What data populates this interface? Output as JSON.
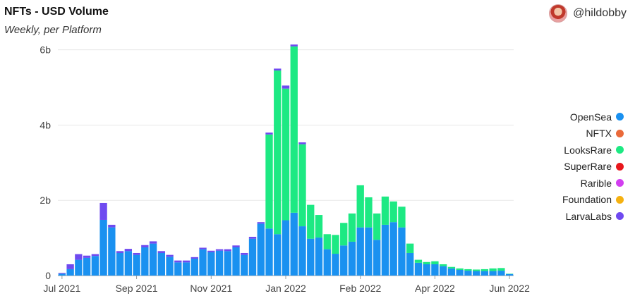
{
  "header": {
    "title": "NFTs - USD Volume",
    "subtitle": "Weekly, per Platform",
    "author": "@hildobby"
  },
  "icons": {
    "avatar": "user-avatar-icon"
  },
  "colors": {
    "OpenSea": "#1a91f0",
    "NFTX": "#ea6a3a",
    "LooksRare": "#1de983",
    "SuperRare": "#e8171c",
    "Rarible": "#d23ef0",
    "Foundation": "#f5b110",
    "LarvaLabs": "#6f4af0",
    "grid": "#e8e8e8",
    "axis": "#999999"
  },
  "chart_data": {
    "type": "bar",
    "stacked": true,
    "title": "NFTs - USD Volume",
    "subtitle": "Weekly, per Platform",
    "ylim": [
      0,
      6200000000
    ],
    "yticks": [
      {
        "value": 0,
        "label": "0"
      },
      {
        "value": 2000000000,
        "label": "2b"
      },
      {
        "value": 4000000000,
        "label": "4b"
      },
      {
        "value": 6000000000,
        "label": "6b"
      }
    ],
    "xticks": [
      {
        "index": 0,
        "label": "Jul 2021"
      },
      {
        "index": 9,
        "label": "Sep 2021"
      },
      {
        "index": 18,
        "label": "Nov 2021"
      },
      {
        "index": 27,
        "label": "Jan 2022"
      },
      {
        "index": 36,
        "label": "Feb 2022"
      },
      {
        "index": 45,
        "label": "Apr 2022"
      },
      {
        "index": 54,
        "label": "Jun 2022"
      }
    ],
    "legend_position": "right",
    "series": [
      {
        "name": "OpenSea",
        "values": [
          0.05,
          0.17,
          0.42,
          0.47,
          0.52,
          1.48,
          1.28,
          0.6,
          0.65,
          0.55,
          0.75,
          0.85,
          0.6,
          0.5,
          0.35,
          0.35,
          0.45,
          0.7,
          0.62,
          0.66,
          0.65,
          0.75,
          0.55,
          0.98,
          1.38,
          1.25,
          1.1,
          1.47,
          1.67,
          1.31,
          0.98,
          1.01,
          0.7,
          0.58,
          0.8,
          0.9,
          1.28,
          1.28,
          0.95,
          1.35,
          1.42,
          1.28,
          0.6,
          0.34,
          0.3,
          0.3,
          0.25,
          0.19,
          0.15,
          0.13,
          0.12,
          0.12,
          0.12,
          0.13,
          0.04
        ]
      },
      {
        "name": "NFTX",
        "values": [
          0,
          0,
          0,
          0,
          0,
          0,
          0,
          0,
          0,
          0,
          0,
          0,
          0,
          0,
          0,
          0,
          0,
          0,
          0,
          0,
          0,
          0,
          0,
          0,
          0,
          0,
          0,
          0,
          0,
          0,
          0,
          0,
          0,
          0,
          0,
          0,
          0,
          0,
          0,
          0,
          0,
          0,
          0,
          0,
          0,
          0,
          0,
          0,
          0,
          0,
          0,
          0,
          0,
          0,
          0
        ]
      },
      {
        "name": "LooksRare",
        "values": [
          0,
          0,
          0,
          0,
          0,
          0,
          0,
          0,
          0,
          0,
          0,
          0,
          0,
          0,
          0,
          0,
          0,
          0,
          0,
          0,
          0,
          0,
          0,
          0,
          0,
          2.5,
          4.35,
          3.5,
          4.42,
          2.18,
          0.9,
          0.6,
          0.4,
          0.5,
          0.6,
          0.75,
          1.12,
          0.8,
          0.7,
          0.75,
          0.55,
          0.55,
          0.25,
          0.08,
          0.06,
          0.08,
          0.05,
          0.04,
          0.04,
          0.04,
          0.04,
          0.05,
          0.07,
          0.07,
          0.01
        ]
      },
      {
        "name": "SuperRare",
        "values": [
          0,
          0,
          0,
          0,
          0,
          0,
          0,
          0,
          0,
          0,
          0,
          0,
          0,
          0,
          0,
          0,
          0,
          0,
          0,
          0,
          0,
          0,
          0,
          0,
          0,
          0,
          0,
          0,
          0,
          0,
          0,
          0,
          0,
          0,
          0,
          0,
          0,
          0,
          0,
          0,
          0,
          0,
          0,
          0,
          0,
          0,
          0,
          0,
          0,
          0,
          0,
          0,
          0,
          0,
          0
        ]
      },
      {
        "name": "Rarible",
        "values": [
          0,
          0,
          0,
          0,
          0,
          0,
          0,
          0,
          0,
          0,
          0,
          0,
          0,
          0,
          0,
          0,
          0,
          0,
          0,
          0,
          0,
          0,
          0,
          0,
          0,
          0,
          0,
          0,
          0,
          0,
          0,
          0,
          0,
          0,
          0,
          0,
          0,
          0,
          0,
          0,
          0,
          0,
          0,
          0,
          0,
          0,
          0,
          0,
          0,
          0,
          0,
          0,
          0,
          0,
          0
        ]
      },
      {
        "name": "Foundation",
        "values": [
          0,
          0,
          0,
          0,
          0,
          0,
          0,
          0,
          0,
          0,
          0,
          0,
          0,
          0,
          0,
          0,
          0,
          0,
          0,
          0,
          0,
          0,
          0,
          0,
          0,
          0,
          0,
          0,
          0,
          0,
          0,
          0,
          0,
          0,
          0,
          0,
          0,
          0,
          0,
          0,
          0,
          0,
          0,
          0,
          0,
          0,
          0,
          0,
          0,
          0,
          0,
          0,
          0,
          0,
          0
        ]
      },
      {
        "name": "LarvaLabs",
        "values": [
          0.02,
          0.13,
          0.15,
          0.06,
          0.05,
          0.45,
          0.07,
          0.05,
          0.06,
          0.05,
          0.06,
          0.06,
          0.05,
          0.05,
          0.05,
          0.05,
          0.04,
          0.04,
          0.04,
          0.04,
          0.05,
          0.05,
          0.05,
          0.05,
          0.04,
          0.05,
          0.05,
          0.08,
          0.05,
          0.05,
          0,
          0,
          0,
          0,
          0,
          0,
          0,
          0,
          0,
          0,
          0,
          0,
          0,
          0,
          0,
          0,
          0,
          0,
          0,
          0,
          0,
          0,
          0,
          0,
          0
        ]
      }
    ]
  }
}
